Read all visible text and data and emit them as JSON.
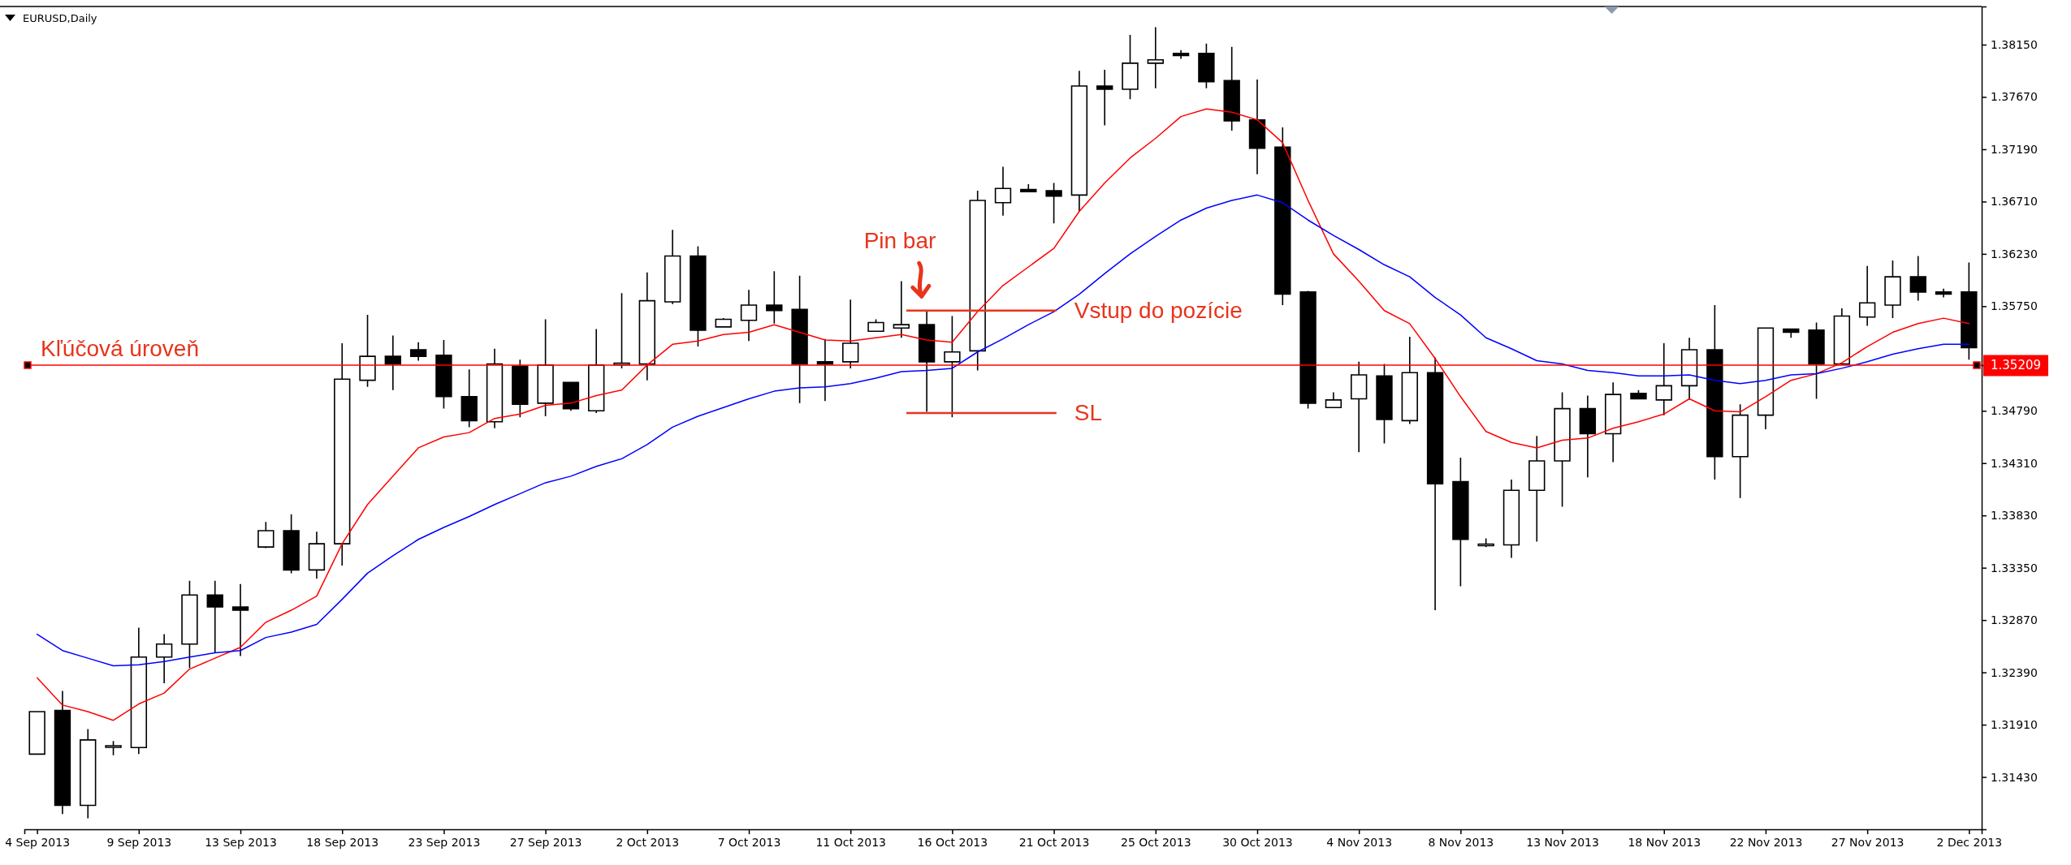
{
  "chart_data": {
    "type": "candlestick",
    "title": "EURUSD,Daily",
    "categories": [
      "4 Sep 2013",
      null,
      null,
      null,
      "9 Sep 2013",
      null,
      null,
      null,
      "13 Sep 2013",
      null,
      null,
      null,
      "18 Sep 2013",
      null,
      null,
      null,
      "23 Sep 2013",
      null,
      null,
      null,
      "27 Sep 2013",
      null,
      null,
      null,
      "2 Oct 2013",
      null,
      null,
      null,
      "7 Oct 2013",
      null,
      null,
      null,
      "11 Oct 2013",
      null,
      null,
      null,
      "16 Oct 2013",
      null,
      null,
      null,
      "21 Oct 2013",
      null,
      null,
      null,
      "25 Oct 2013",
      null,
      null,
      null,
      "30 Oct 2013",
      null,
      null,
      null,
      "4 Nov 2013",
      null,
      null,
      null,
      "8 Nov 2013",
      null,
      null,
      null,
      "13 Nov 2013",
      null,
      null,
      null,
      "18 Nov 2013",
      null,
      null,
      null,
      "22 Nov 2013",
      null,
      null,
      null,
      "27 Nov 2013",
      null,
      null,
      null,
      "2 Dec 2013"
    ],
    "ohlc": [
      [
        1.3164,
        1.3203,
        1.3164,
        1.3203
      ],
      [
        1.3204,
        1.3222,
        1.3109,
        1.3117
      ],
      [
        1.3117,
        1.3187,
        1.3105,
        1.3177
      ],
      [
        1.3171,
        1.3176,
        1.3163,
        1.3171
      ],
      [
        1.317,
        1.328,
        1.3164,
        1.3253
      ],
      [
        1.3253,
        1.3274,
        1.3229,
        1.3265
      ],
      [
        1.3265,
        1.3323,
        1.3243,
        1.331
      ],
      [
        1.331,
        1.3323,
        1.3257,
        1.3299
      ],
      [
        1.3299,
        1.332,
        1.3254,
        1.3296
      ],
      [
        1.3354,
        1.3377,
        1.3353,
        1.3369
      ],
      [
        1.3369,
        1.3384,
        1.333,
        1.3333
      ],
      [
        1.3333,
        1.3368,
        1.3325,
        1.3357
      ],
      [
        1.3357,
        1.3541,
        1.3337,
        1.3508
      ],
      [
        1.3507,
        1.3567,
        1.3501,
        1.3529
      ],
      [
        1.3529,
        1.3548,
        1.3498,
        1.3522
      ],
      [
        1.3535,
        1.3542,
        1.3525,
        1.3529
      ],
      [
        1.353,
        1.3544,
        1.3481,
        1.3492
      ],
      [
        1.3492,
        1.3517,
        1.3464,
        1.347
      ],
      [
        1.3469,
        1.3536,
        1.3463,
        1.3522
      ],
      [
        1.352,
        1.3526,
        1.3473,
        1.3485
      ],
      [
        1.3486,
        1.3563,
        1.3474,
        1.3521
      ],
      [
        1.3505,
        1.3505,
        1.3479,
        1.3481
      ],
      [
        1.3479,
        1.3554,
        1.3477,
        1.3521
      ],
      [
        1.3522,
        1.3587,
        1.3518,
        1.3522
      ],
      [
        1.3522,
        1.3606,
        1.3507,
        1.358
      ],
      [
        1.3579,
        1.3645,
        1.3577,
        1.3621
      ],
      [
        1.3621,
        1.363,
        1.3538,
        1.3553
      ],
      [
        1.3556,
        1.3564,
        1.3556,
        1.3563
      ],
      [
        1.3562,
        1.359,
        1.3543,
        1.3576
      ],
      [
        1.3576,
        1.3607,
        1.3559,
        1.3571
      ],
      [
        1.3572,
        1.3603,
        1.3486,
        1.3522
      ],
      [
        1.3524,
        1.3545,
        1.3488,
        1.3522
      ],
      [
        1.3524,
        1.3581,
        1.3518,
        1.3541
      ],
      [
        1.3552,
        1.3563,
        1.3552,
        1.356
      ],
      [
        1.3555,
        1.3598,
        1.3546,
        1.3558
      ],
      [
        1.3558,
        1.357,
        1.3478,
        1.3524
      ],
      [
        1.3524,
        1.3566,
        1.3473,
        1.3533
      ],
      [
        1.3534,
        1.3681,
        1.3516,
        1.3672
      ],
      [
        1.367,
        1.3703,
        1.3658,
        1.3683
      ],
      [
        1.3682,
        1.3687,
        1.368,
        1.368
      ],
      [
        1.3681,
        1.3688,
        1.3651,
        1.3676
      ],
      [
        1.3677,
        1.3791,
        1.3662,
        1.3777
      ],
      [
        1.3777,
        1.3792,
        1.3741,
        1.3774
      ],
      [
        1.3774,
        1.3824,
        1.3765,
        1.3798
      ],
      [
        1.3798,
        1.3831,
        1.3775,
        1.3801
      ],
      [
        1.3807,
        1.381,
        1.3802,
        1.3805
      ],
      [
        1.3807,
        1.3816,
        1.3775,
        1.3781
      ],
      [
        1.3782,
        1.3813,
        1.3736,
        1.3745
      ],
      [
        1.3746,
        1.3783,
        1.3696,
        1.372
      ],
      [
        1.3721,
        1.3739,
        1.3576,
        1.3586
      ],
      [
        1.3588,
        1.3589,
        1.3481,
        1.3486
      ],
      [
        1.3482,
        1.3496,
        1.3482,
        1.3489
      ],
      [
        1.349,
        1.3524,
        1.3441,
        1.3512
      ],
      [
        1.3511,
        1.3522,
        1.3449,
        1.3471
      ],
      [
        1.347,
        1.3547,
        1.3467,
        1.3514
      ],
      [
        1.3514,
        1.3528,
        1.3296,
        1.3412
      ],
      [
        1.3414,
        1.3436,
        1.3318,
        1.3361
      ],
      [
        1.3356,
        1.3362,
        1.3354,
        1.3356
      ],
      [
        1.3356,
        1.3416,
        1.3344,
        1.3406
      ],
      [
        1.3406,
        1.3456,
        1.3359,
        1.3433
      ],
      [
        1.3433,
        1.3496,
        1.3391,
        1.3481
      ],
      [
        1.3481,
        1.3493,
        1.3418,
        1.3458
      ],
      [
        1.3458,
        1.3505,
        1.3432,
        1.3494
      ],
      [
        1.3495,
        1.3498,
        1.349,
        1.349
      ],
      [
        1.3489,
        1.3541,
        1.3475,
        1.3502
      ],
      [
        1.3502,
        1.3546,
        1.3489,
        1.3535
      ],
      [
        1.3535,
        1.3576,
        1.3416,
        1.3437
      ],
      [
        1.3437,
        1.3485,
        1.3399,
        1.3475
      ],
      [
        1.3475,
        1.3555,
        1.3462,
        1.3555
      ],
      [
        1.3554,
        1.3554,
        1.3546,
        1.3551
      ],
      [
        1.3553,
        1.356,
        1.349,
        1.3522
      ],
      [
        1.3522,
        1.3573,
        1.3522,
        1.3566
      ],
      [
        1.3565,
        1.3612,
        1.3557,
        1.3578
      ],
      [
        1.3576,
        1.3617,
        1.3564,
        1.3602
      ],
      [
        1.3602,
        1.3621,
        1.358,
        1.3588
      ],
      [
        1.3588,
        1.3591,
        1.3583,
        1.3586
      ],
      [
        1.3588,
        1.3615,
        1.3526,
        1.3537
      ]
    ],
    "series": [
      {
        "type": "line",
        "color": "#ff0000",
        "values": [
          1.3234,
          1.3209,
          1.3203,
          1.3195,
          1.321,
          1.322,
          1.3242,
          1.3252,
          1.3262,
          1.3285,
          1.3296,
          1.3309,
          1.3357,
          1.3393,
          1.3419,
          1.3445,
          1.3455,
          1.3459,
          1.3472,
          1.3476,
          1.3484,
          1.3486,
          1.3493,
          1.3498,
          1.3521,
          1.354,
          1.3543,
          1.3549,
          1.3551,
          1.3558,
          1.3551,
          1.3544,
          1.3543,
          1.3546,
          1.3549,
          1.3544,
          1.3542,
          1.357,
          1.3594,
          1.3611,
          1.3628,
          1.3662,
          1.3688,
          1.3711,
          1.3729,
          1.3749,
          1.3756,
          1.3753,
          1.3746,
          1.3725,
          1.3672,
          1.3623,
          1.3598,
          1.3571,
          1.3559,
          1.3527,
          1.3492,
          1.346,
          1.345,
          1.3445,
          1.3452,
          1.3454,
          1.3463,
          1.3469,
          1.3476,
          1.349,
          1.3479,
          1.3478,
          1.3492,
          1.3507,
          1.3513,
          1.3523,
          1.3538,
          1.3551,
          1.3559,
          1.3564,
          1.3559
        ]
      },
      {
        "type": "line",
        "color": "#0000ff",
        "values": [
          1.3274,
          1.3259,
          1.3252,
          1.3245,
          1.3246,
          1.3249,
          1.3253,
          1.3257,
          1.3259,
          1.3271,
          1.3276,
          1.3283,
          1.3306,
          1.333,
          1.3346,
          1.3361,
          1.3372,
          1.3382,
          1.3393,
          1.3403,
          1.3413,
          1.3419,
          1.3428,
          1.3435,
          1.3448,
          1.3464,
          1.3474,
          1.3482,
          1.349,
          1.3497,
          1.35,
          1.3501,
          1.3504,
          1.3509,
          1.3515,
          1.3516,
          1.3518,
          1.3533,
          1.3545,
          1.3558,
          1.357,
          1.3586,
          1.3605,
          1.3623,
          1.3639,
          1.3654,
          1.3665,
          1.3672,
          1.3677,
          1.367,
          1.3654,
          1.364,
          1.3627,
          1.3613,
          1.3602,
          1.3583,
          1.3567,
          1.3546,
          1.3536,
          1.3525,
          1.3522,
          1.3516,
          1.3514,
          1.3511,
          1.3511,
          1.3512,
          1.3507,
          1.3504,
          1.3507,
          1.3512,
          1.3513,
          1.3518,
          1.3524,
          1.3531,
          1.3536,
          1.354,
          1.354
        ]
      }
    ],
    "ylim": [
      1.3095,
      1.385
    ],
    "yticks": [
      {
        "value": 1.3143,
        "label": "1.31430"
      },
      {
        "value": 1.3191,
        "label": "1.31910"
      },
      {
        "value": 1.3239,
        "label": "1.32390"
      },
      {
        "value": 1.3287,
        "label": "1.32870"
      },
      {
        "value": 1.3335,
        "label": "1.33350"
      },
      {
        "value": 1.3383,
        "label": "1.33830"
      },
      {
        "value": 1.3431,
        "label": "1.34310"
      },
      {
        "value": 1.3479,
        "label": "1.34790"
      },
      {
        "value": 1.35209,
        "label": "1.35209"
      },
      {
        "value": 1.3575,
        "label": "1.35750"
      },
      {
        "value": 1.3623,
        "label": "1.36230"
      },
      {
        "value": 1.3671,
        "label": "1.36710"
      },
      {
        "value": 1.3719,
        "label": "1.37190"
      },
      {
        "value": 1.3767,
        "label": "1.37670"
      },
      {
        "value": 1.3815,
        "label": "1.38150"
      }
    ],
    "ref_lines": [
      {
        "axis": "y",
        "value": 1.35209,
        "label": "Kľúčová úroveň",
        "color": "#ff0000"
      }
    ],
    "annotations": [
      "Pin bar",
      "Vstup do pozície",
      "SL"
    ]
  }
}
